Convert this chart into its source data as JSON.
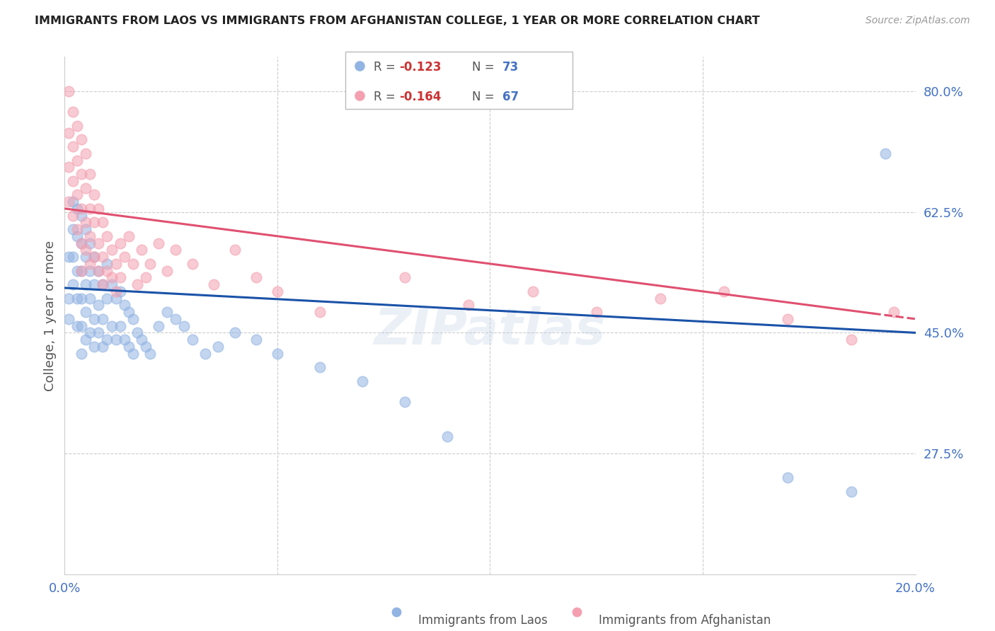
{
  "title": "IMMIGRANTS FROM LAOS VS IMMIGRANTS FROM AFGHANISTAN COLLEGE, 1 YEAR OR MORE CORRELATION CHART",
  "source": "Source: ZipAtlas.com",
  "ylabel": "College, 1 year or more",
  "xlim": [
    0.0,
    0.2
  ],
  "ylim": [
    0.1,
    0.85
  ],
  "yticks": [
    0.275,
    0.45,
    0.625,
    0.8
  ],
  "ytick_labels": [
    "27.5%",
    "45.0%",
    "62.5%",
    "80.0%"
  ],
  "xticks": [
    0.0,
    0.05,
    0.1,
    0.15,
    0.2
  ],
  "xtick_labels": [
    "0.0%",
    "",
    "",
    "",
    "20.0%"
  ],
  "legend_blue_r": "-0.123",
  "legend_blue_n": "73",
  "legend_pink_r": "-0.164",
  "legend_pink_n": "67",
  "blue_color": "#92b4e3",
  "pink_color": "#f4a0b0",
  "blue_line_color": "#1a52a8",
  "pink_line_color": "#e05070",
  "watermark": "ZIPatlas",
  "blue_line_x0": 0.0,
  "blue_line_y0": 0.515,
  "blue_line_x1": 0.2,
  "blue_line_y1": 0.45,
  "pink_line_x0": 0.0,
  "pink_line_y0": 0.63,
  "pink_line_x1_solid": 0.19,
  "pink_line_x1": 0.2,
  "pink_line_y1": 0.47,
  "blue_scatter_x": [
    0.001,
    0.001,
    0.001,
    0.002,
    0.002,
    0.002,
    0.002,
    0.003,
    0.003,
    0.003,
    0.003,
    0.003,
    0.004,
    0.004,
    0.004,
    0.004,
    0.004,
    0.004,
    0.005,
    0.005,
    0.005,
    0.005,
    0.005,
    0.006,
    0.006,
    0.006,
    0.006,
    0.007,
    0.007,
    0.007,
    0.007,
    0.008,
    0.008,
    0.008,
    0.009,
    0.009,
    0.009,
    0.01,
    0.01,
    0.01,
    0.011,
    0.011,
    0.012,
    0.012,
    0.013,
    0.013,
    0.014,
    0.014,
    0.015,
    0.015,
    0.016,
    0.016,
    0.017,
    0.018,
    0.019,
    0.02,
    0.022,
    0.024,
    0.026,
    0.028,
    0.03,
    0.033,
    0.036,
    0.04,
    0.045,
    0.05,
    0.06,
    0.07,
    0.08,
    0.09,
    0.17,
    0.185,
    0.193
  ],
  "blue_scatter_y": [
    0.56,
    0.5,
    0.47,
    0.64,
    0.6,
    0.56,
    0.52,
    0.63,
    0.59,
    0.54,
    0.5,
    0.46,
    0.62,
    0.58,
    0.54,
    0.5,
    0.46,
    0.42,
    0.6,
    0.56,
    0.52,
    0.48,
    0.44,
    0.58,
    0.54,
    0.5,
    0.45,
    0.56,
    0.52,
    0.47,
    0.43,
    0.54,
    0.49,
    0.45,
    0.52,
    0.47,
    0.43,
    0.55,
    0.5,
    0.44,
    0.52,
    0.46,
    0.5,
    0.44,
    0.51,
    0.46,
    0.49,
    0.44,
    0.48,
    0.43,
    0.47,
    0.42,
    0.45,
    0.44,
    0.43,
    0.42,
    0.46,
    0.48,
    0.47,
    0.46,
    0.44,
    0.42,
    0.43,
    0.45,
    0.44,
    0.42,
    0.4,
    0.38,
    0.35,
    0.3,
    0.24,
    0.22,
    0.71
  ],
  "pink_scatter_x": [
    0.001,
    0.001,
    0.001,
    0.001,
    0.002,
    0.002,
    0.002,
    0.002,
    0.003,
    0.003,
    0.003,
    0.003,
    0.004,
    0.004,
    0.004,
    0.004,
    0.004,
    0.005,
    0.005,
    0.005,
    0.005,
    0.006,
    0.006,
    0.006,
    0.006,
    0.007,
    0.007,
    0.007,
    0.008,
    0.008,
    0.008,
    0.009,
    0.009,
    0.009,
    0.01,
    0.01,
    0.011,
    0.011,
    0.012,
    0.012,
    0.013,
    0.013,
    0.014,
    0.015,
    0.016,
    0.017,
    0.018,
    0.019,
    0.02,
    0.022,
    0.024,
    0.026,
    0.03,
    0.035,
    0.04,
    0.045,
    0.05,
    0.06,
    0.08,
    0.095,
    0.11,
    0.125,
    0.14,
    0.155,
    0.17,
    0.185,
    0.195
  ],
  "pink_scatter_y": [
    0.8,
    0.74,
    0.69,
    0.64,
    0.77,
    0.72,
    0.67,
    0.62,
    0.75,
    0.7,
    0.65,
    0.6,
    0.73,
    0.68,
    0.63,
    0.58,
    0.54,
    0.71,
    0.66,
    0.61,
    0.57,
    0.68,
    0.63,
    0.59,
    0.55,
    0.65,
    0.61,
    0.56,
    0.63,
    0.58,
    0.54,
    0.61,
    0.56,
    0.52,
    0.59,
    0.54,
    0.57,
    0.53,
    0.55,
    0.51,
    0.58,
    0.53,
    0.56,
    0.59,
    0.55,
    0.52,
    0.57,
    0.53,
    0.55,
    0.58,
    0.54,
    0.57,
    0.55,
    0.52,
    0.57,
    0.53,
    0.51,
    0.48,
    0.53,
    0.49,
    0.51,
    0.48,
    0.5,
    0.51,
    0.47,
    0.44,
    0.48
  ]
}
